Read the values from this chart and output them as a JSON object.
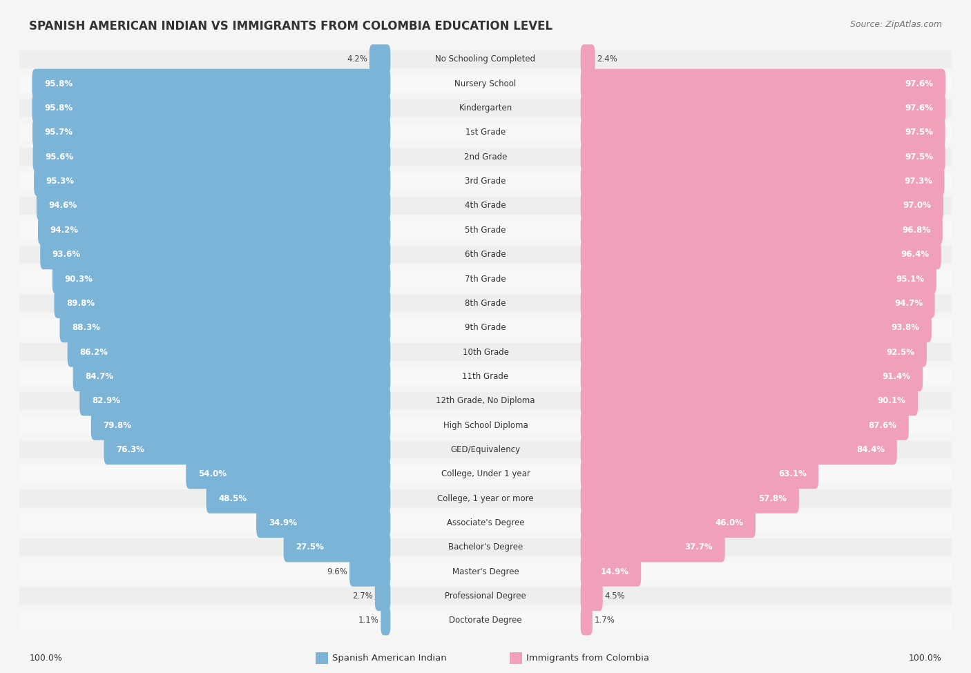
{
  "title": "SPANISH AMERICAN INDIAN VS IMMIGRANTS FROM COLOMBIA EDUCATION LEVEL",
  "source": "Source: ZipAtlas.com",
  "categories": [
    "No Schooling Completed",
    "Nursery School",
    "Kindergarten",
    "1st Grade",
    "2nd Grade",
    "3rd Grade",
    "4th Grade",
    "5th Grade",
    "6th Grade",
    "7th Grade",
    "8th Grade",
    "9th Grade",
    "10th Grade",
    "11th Grade",
    "12th Grade, No Diploma",
    "High School Diploma",
    "GED/Equivalency",
    "College, Under 1 year",
    "College, 1 year or more",
    "Associate's Degree",
    "Bachelor's Degree",
    "Master's Degree",
    "Professional Degree",
    "Doctorate Degree"
  ],
  "spanish_values": [
    4.2,
    95.8,
    95.8,
    95.7,
    95.6,
    95.3,
    94.6,
    94.2,
    93.6,
    90.3,
    89.8,
    88.3,
    86.2,
    84.7,
    82.9,
    79.8,
    76.3,
    54.0,
    48.5,
    34.9,
    27.5,
    9.6,
    2.7,
    1.1
  ],
  "colombia_values": [
    2.4,
    97.6,
    97.6,
    97.5,
    97.5,
    97.3,
    97.0,
    96.8,
    96.4,
    95.1,
    94.7,
    93.8,
    92.5,
    91.4,
    90.1,
    87.6,
    84.4,
    63.1,
    57.8,
    46.0,
    37.7,
    14.9,
    4.5,
    1.7
  ],
  "spanish_color": "#7cb4d8",
  "colombia_color": "#f0a0b8",
  "row_bg_even": "#eeeeee",
  "row_bg_odd": "#f8f8f8",
  "background_color": "#f5f5f5",
  "title_fontsize": 12,
  "label_fontsize": 8.5,
  "value_fontsize": 8.5,
  "legend_label_spanish": "Spanish American Indian",
  "legend_label_colombia": "Immigrants from Colombia"
}
